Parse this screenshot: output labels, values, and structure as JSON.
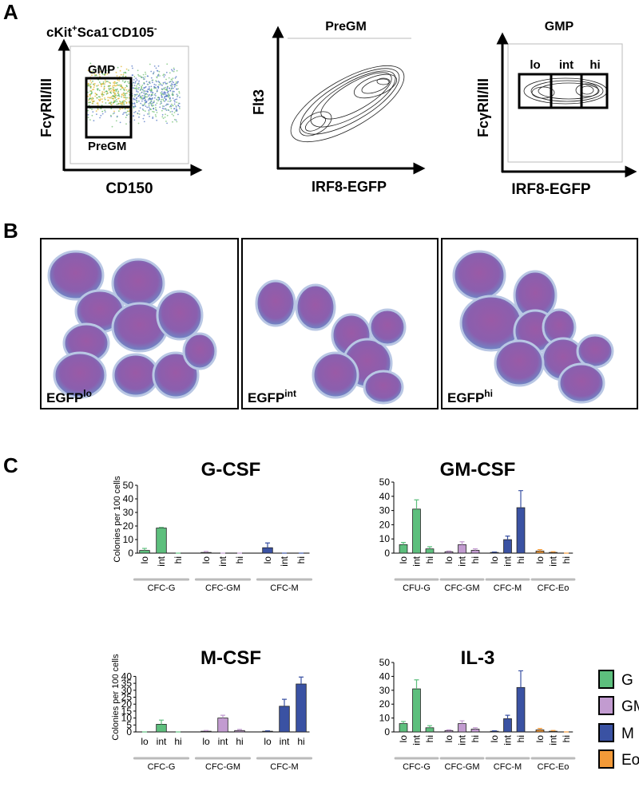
{
  "panels": {
    "a": "A",
    "b": "B",
    "c": "C"
  },
  "flow": [
    {
      "title_parts": [
        "cKit",
        "+",
        "Sca1",
        "-",
        "CD105",
        "-"
      ],
      "ylabel": "FcγRII/III",
      "xlabel": "CD150",
      "gates": [
        "GMP",
        "PreGM"
      ]
    },
    {
      "title": "PreGM",
      "ylabel": "Flt3",
      "xlabel": "IRF8-EGFP"
    },
    {
      "title": "GMP",
      "ylabel": "FcγRII/III",
      "xlabel": "IRF8-EGFP",
      "gates": [
        "lo",
        "int",
        "hi"
      ]
    }
  ],
  "micrographs": [
    {
      "label": "EGFP",
      "sup": "lo"
    },
    {
      "label": "EGFP",
      "sup": "int"
    },
    {
      "label": "EGFP",
      "sup": "hi"
    }
  ],
  "legend": [
    {
      "name": "G",
      "color": "#5dbf7d"
    },
    {
      "name": "GM",
      "color": "#c29bd0"
    },
    {
      "name": "M",
      "color": "#3a52a3"
    },
    {
      "name": "Eo",
      "color": "#f39a38"
    }
  ],
  "chart_data": [
    {
      "type": "bar",
      "title": "G-CSF",
      "ylabel": "Colonies per 100 cells",
      "categories": [
        "lo",
        "int",
        "hi",
        "lo",
        "int",
        "hi",
        "lo",
        "int",
        "hi"
      ],
      "groups": [
        {
          "name": "CFC-G",
          "color": "#5dbf7d"
        },
        {
          "name": "CFC-GM",
          "color": "#c29bd0"
        },
        {
          "name": "CFC-M",
          "color": "#3a52a3"
        }
      ],
      "values": [
        2,
        18.5,
        0,
        0.5,
        0,
        0,
        4,
        0,
        0
      ],
      "errors": [
        1.5,
        0.5,
        0,
        0.8,
        0,
        0,
        3.5,
        0,
        0
      ],
      "ylim": [
        0,
        50
      ],
      "yticks": [
        0,
        10,
        20,
        30,
        40,
        50
      ]
    },
    {
      "type": "bar",
      "title": "GM-CSF",
      "categories": [
        "lo",
        "int",
        "hi",
        "lo",
        "int",
        "hi",
        "lo",
        "int",
        "hi",
        "lo",
        "int",
        "hi"
      ],
      "groups": [
        {
          "name": "CFU-G",
          "color": "#5dbf7d"
        },
        {
          "name": "CFC-GM",
          "color": "#c29bd0"
        },
        {
          "name": "CFC-M",
          "color": "#3a52a3"
        },
        {
          "name": "CFC-Eo",
          "color": "#f39a38"
        }
      ],
      "values": [
        6,
        31,
        3,
        1,
        6,
        2,
        0.5,
        9.5,
        32,
        1.5,
        0.5,
        0
      ],
      "errors": [
        1.5,
        6.5,
        1.5,
        0.5,
        2,
        1,
        0.3,
        2.5,
        12,
        1,
        0.5,
        0
      ],
      "ylim": [
        0,
        50
      ],
      "yticks": [
        0,
        10,
        20,
        30,
        40,
        50
      ]
    },
    {
      "type": "bar",
      "title": "M-CSF",
      "ylabel": "Colonies per 100 cells",
      "categories": [
        "lo",
        "int",
        "hi",
        "lo",
        "int",
        "hi",
        "lo",
        "int",
        "hi"
      ],
      "groups": [
        {
          "name": "CFC-G",
          "color": "#5dbf7d"
        },
        {
          "name": "CFC-GM",
          "color": "#c29bd0"
        },
        {
          "name": "CFC-M",
          "color": "#3a52a3"
        }
      ],
      "values": [
        0,
        5.5,
        0,
        0.5,
        10,
        1,
        0.5,
        18.5,
        34.5
      ],
      "errors": [
        0,
        3,
        0,
        0.5,
        2,
        0.8,
        0.3,
        5,
        5
      ],
      "ylim": [
        0,
        50
      ],
      "yticks": [
        0,
        5,
        10,
        15,
        20,
        25,
        30,
        35,
        40
      ]
    },
    {
      "type": "bar",
      "title": "IL-3",
      "categories": [
        "lo",
        "int",
        "hi",
        "lo",
        "int",
        "hi",
        "lo",
        "int",
        "hi",
        "lo",
        "int",
        "hi"
      ],
      "groups": [
        {
          "name": "CFC-G",
          "color": "#5dbf7d"
        },
        {
          "name": "CFC-GM",
          "color": "#c29bd0"
        },
        {
          "name": "CFC-M",
          "color": "#3a52a3"
        },
        {
          "name": "CFC-Eo",
          "color": "#f39a38"
        }
      ],
      "values": [
        6,
        31,
        3,
        1,
        6,
        2,
        0.5,
        9.5,
        32,
        1.5,
        0.5,
        0
      ],
      "errors": [
        1.5,
        6.5,
        1.5,
        0.5,
        2,
        1,
        0.3,
        2.5,
        12,
        1,
        0.5,
        0
      ],
      "ylim": [
        0,
        50
      ],
      "yticks": [
        0,
        10,
        20,
        30,
        40,
        50
      ]
    }
  ]
}
